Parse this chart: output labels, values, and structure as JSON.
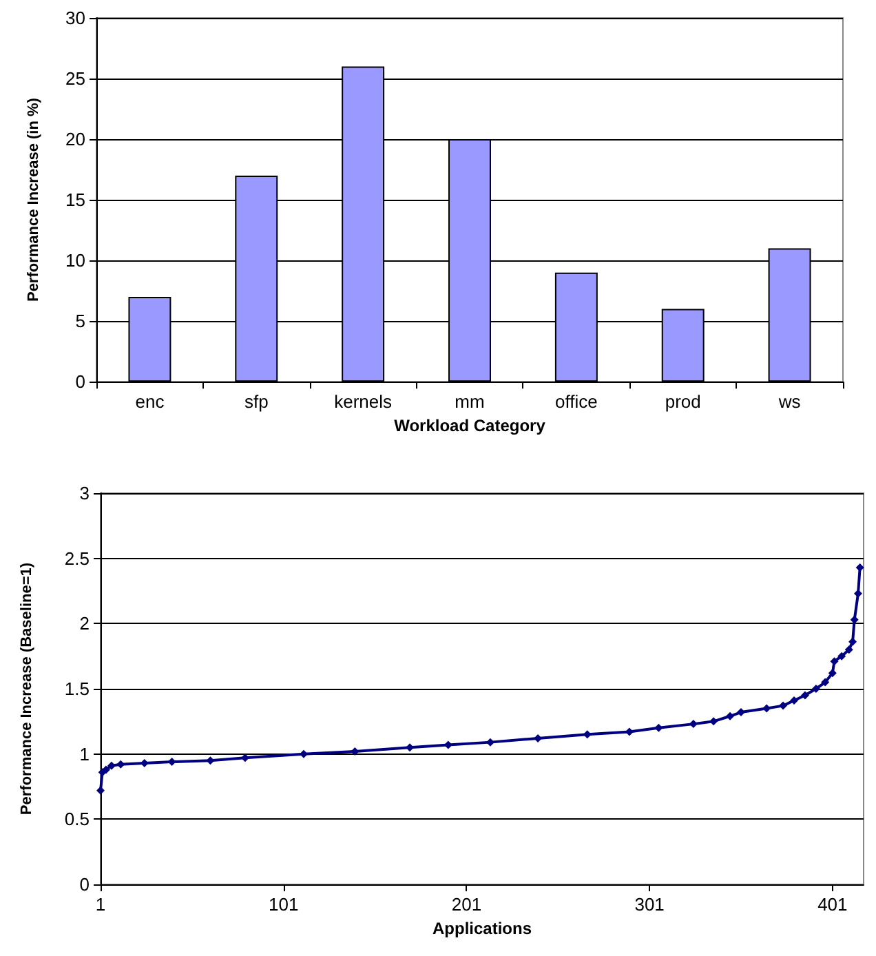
{
  "chart_data": [
    {
      "type": "bar",
      "xlabel": "Workload Category",
      "ylabel": "Performance Increase (in %)",
      "categories": [
        "enc",
        "sfp",
        "kernels",
        "mm",
        "office",
        "prod",
        "ws"
      ],
      "values": [
        7,
        17,
        26,
        20,
        9,
        6,
        11
      ],
      "color": "#9999ff",
      "ylim": [
        0,
        30
      ],
      "yticks": [
        0,
        5,
        10,
        15,
        20,
        25,
        30
      ],
      "grid": "y"
    },
    {
      "type": "line",
      "xlabel": "Applications",
      "ylabel": "Performance Increase (Baseline=1)",
      "x": [
        1,
        2,
        4,
        7,
        12,
        25,
        40,
        61,
        80,
        112,
        140,
        170,
        191,
        214,
        240,
        267,
        290,
        306,
        325,
        336,
        345,
        351,
        365,
        374,
        380,
        386,
        392,
        397,
        401,
        402,
        406,
        410,
        412,
        413,
        415,
        416
      ],
      "values": [
        0.72,
        0.86,
        0.88,
        0.91,
        0.92,
        0.93,
        0.94,
        0.95,
        0.97,
        1.0,
        1.02,
        1.05,
        1.07,
        1.09,
        1.12,
        1.15,
        1.17,
        1.2,
        1.23,
        1.25,
        1.29,
        1.32,
        1.35,
        1.37,
        1.41,
        1.45,
        1.5,
        1.55,
        1.62,
        1.71,
        1.75,
        1.8,
        1.86,
        2.03,
        2.23,
        2.43
      ],
      "color": "#000080",
      "marker": "diamond",
      "line_style": "solid",
      "xlim": [
        1,
        418
      ],
      "xticks": [
        1,
        101,
        201,
        301,
        401
      ],
      "ylim": [
        0,
        3
      ],
      "yticks": [
        0,
        0.5,
        1,
        1.5,
        2,
        2.5,
        3
      ],
      "grid": "y"
    }
  ]
}
